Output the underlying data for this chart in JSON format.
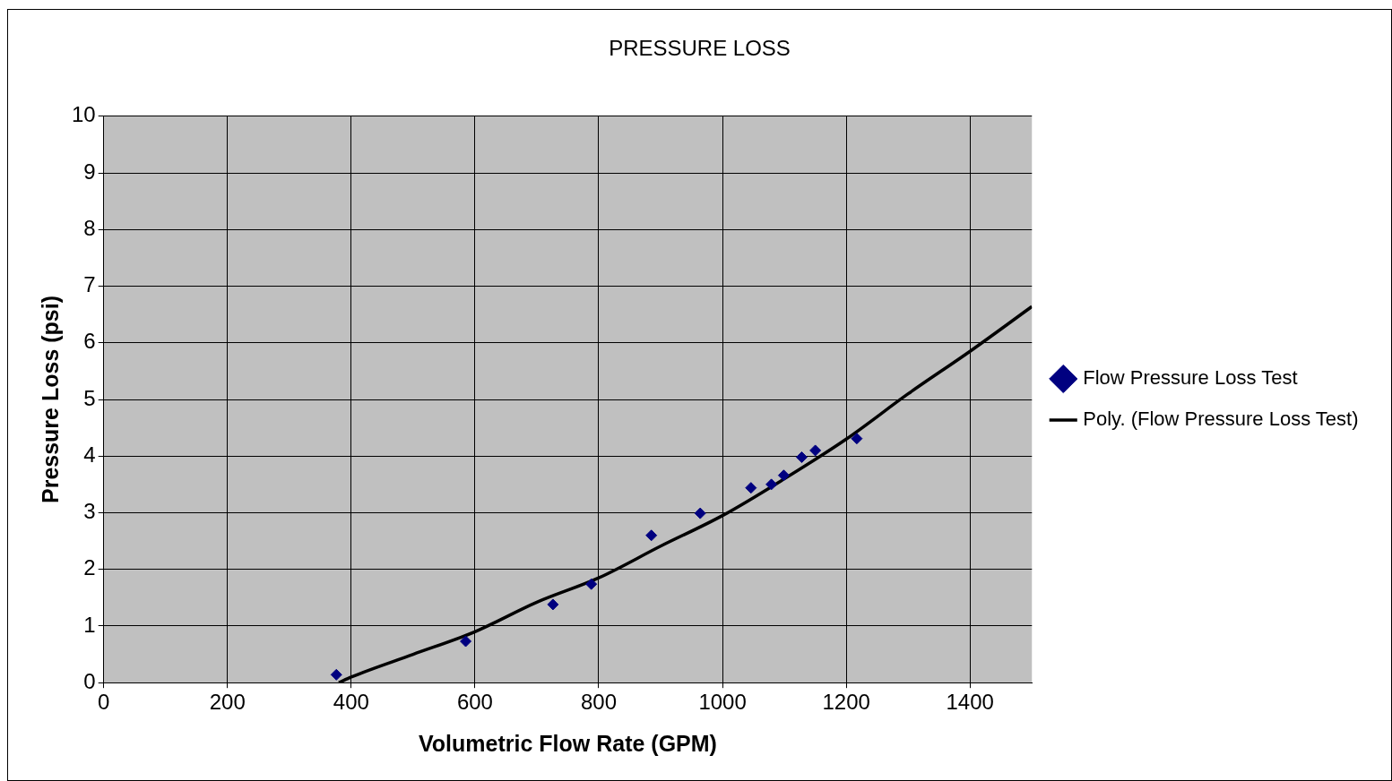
{
  "chart_data": {
    "type": "scatter",
    "title": "PRESSURE LOSS",
    "xlabel": "Volumetric Flow Rate (GPM)",
    "ylabel": "Pressure Loss (psi)",
    "xlim": [
      0,
      1500
    ],
    "xticks": [
      0,
      200,
      400,
      600,
      800,
      1000,
      1200,
      1400
    ],
    "ylim": [
      0,
      10
    ],
    "yticks": [
      0,
      1,
      2,
      3,
      4,
      5,
      6,
      7,
      8,
      9,
      10
    ],
    "grid": true,
    "legend": "right",
    "series": [
      {
        "name": "Flow Pressure Loss Test",
        "type": "scatter",
        "marker": "diamond",
        "color": "#000080",
        "x": [
          376,
          585,
          726,
          788,
          885,
          964,
          1046,
          1079,
          1099,
          1128,
          1150,
          1217
        ],
        "values": [
          0.14,
          0.73,
          1.38,
          1.74,
          2.6,
          2.99,
          3.44,
          3.5,
          3.66,
          3.98,
          4.1,
          4.31
        ]
      },
      {
        "name": "Poly. (Flow Pressure Loss Test)",
        "type": "line",
        "marker": "none",
        "line_style": "solid",
        "color": "#000000",
        "x": [
          380,
          400,
          500,
          600,
          700,
          800,
          900,
          1000,
          1100,
          1200,
          1300,
          1400,
          1500
        ],
        "values": [
          0,
          0.1,
          0.5,
          0.9,
          1.42,
          1.85,
          2.41,
          2.95,
          3.6,
          4.3,
          5.1,
          5.85,
          6.64
        ]
      }
    ]
  }
}
